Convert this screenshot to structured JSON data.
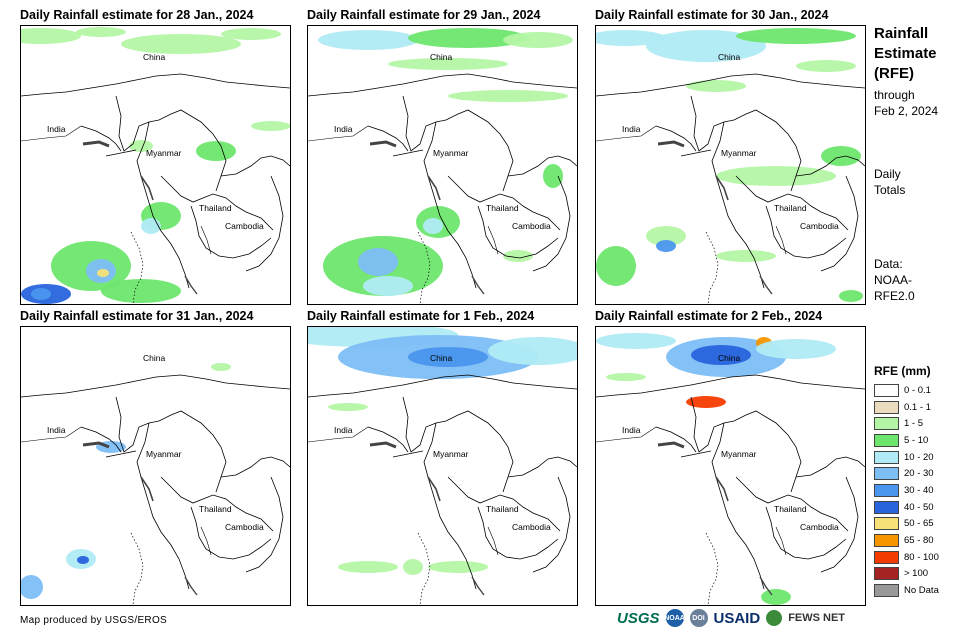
{
  "panels": [
    {
      "title": "Daily Rainfall estimate for 28 Jan., 2024"
    },
    {
      "title": "Daily Rainfall estimate for 29 Jan., 2024"
    },
    {
      "title": "Daily Rainfall estimate for 30 Jan., 2024"
    },
    {
      "title": "Daily Rainfall estimate for 31 Jan., 2024"
    },
    {
      "title": "Daily Rainfall estimate for 1 Feb., 2024"
    },
    {
      "title": "Daily Rainfall estimate for 2 Feb., 2024"
    }
  ],
  "places": {
    "china": "China",
    "india": "India",
    "myanmar": "Myanmar",
    "thailand": "Thailand",
    "cambodia": "Cambodia"
  },
  "side": {
    "title_l1": "Rainfall",
    "title_l2": "Estimate",
    "title_l3": "(RFE)",
    "through": "through",
    "date": "Feb 2, 2024",
    "daily": "Daily",
    "totals": "Totals",
    "data_l1": "Data:",
    "data_l2": "NOAA-",
    "data_l3": "RFE2.0"
  },
  "legend": {
    "title": "RFE (mm)",
    "items": [
      {
        "label": "0 - 0.1",
        "color": "#ffffff"
      },
      {
        "label": "0.1 - 1",
        "color": "#ecdcbf"
      },
      {
        "label": "1 - 5",
        "color": "#b4f5a5"
      },
      {
        "label": "5 - 10",
        "color": "#6ee66e"
      },
      {
        "label": "10 - 20",
        "color": "#b0ebf5"
      },
      {
        "label": "20 - 30",
        "color": "#7dbef5"
      },
      {
        "label": "30 - 40",
        "color": "#4a96ee"
      },
      {
        "label": "40 - 50",
        "color": "#2864dc"
      },
      {
        "label": "50 - 65",
        "color": "#f5e178"
      },
      {
        "label": "65 - 80",
        "color": "#f59600"
      },
      {
        "label": "80 - 100",
        "color": "#f53c00"
      },
      {
        "label": "> 100",
        "color": "#a52323"
      },
      {
        "label": "No Data",
        "color": "#999999"
      }
    ]
  },
  "footer": {
    "credit": "Map produced by USGS/EROS"
  },
  "logos": {
    "usgs": "USGS",
    "noaa": "NOAA",
    "doi": "DOI",
    "usaid": "USAID",
    "fews": "FEWS NET"
  }
}
